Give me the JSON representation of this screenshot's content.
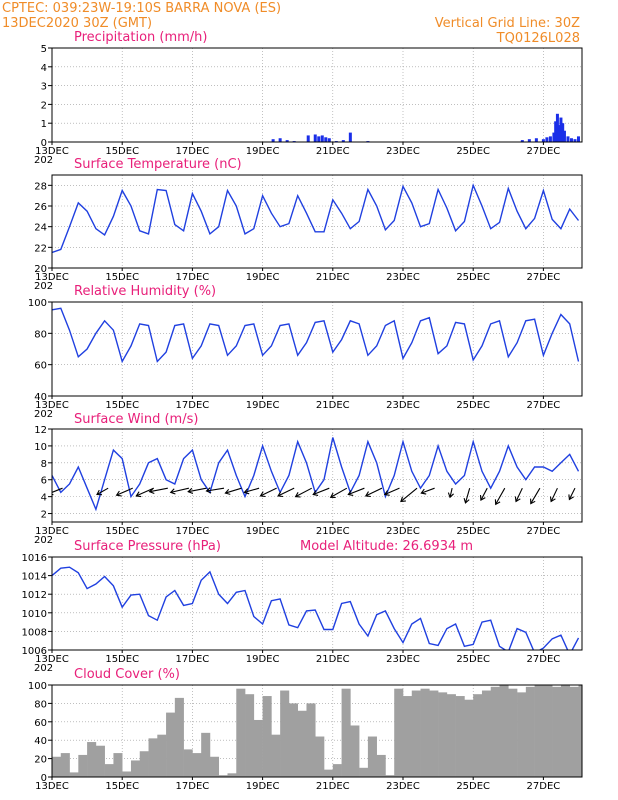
{
  "header": {
    "line1_left": "CPTEC:   039:23W-19:10S   BARRA NOVA (ES)",
    "line2_left": "13DEC2020 30Z (GMT)",
    "line1_right": "Vertical Grid Line: 30Z",
    "line2_right": "TQ0126L028",
    "year_stub": "202"
  },
  "colors": {
    "header": "#f08c28",
    "title": "#e8207a",
    "line": "#2040e0",
    "bar": "#1a2ee8",
    "cloud": "#a0a0a0",
    "arrow": "#000000"
  },
  "x_axis": {
    "day_start": 13,
    "day_end": 28.1,
    "tick_days": [
      13,
      15,
      17,
      19,
      21,
      23,
      25,
      27
    ],
    "tick_labels": [
      "13DEC",
      "15DEC",
      "17DEC",
      "19DEC",
      "21DEC",
      "23DEC",
      "25DEC",
      "27DEC"
    ]
  },
  "chart_data": [
    {
      "type": "bar",
      "title": "Precipitation (mm/h)",
      "ylim": [
        0,
        5
      ],
      "yticks": [
        0,
        1,
        2,
        3,
        4,
        5
      ],
      "x": [
        13.2,
        13.6,
        14.0,
        14.4,
        14.8,
        15.2,
        15.6,
        16.0,
        16.4,
        16.8,
        17.2,
        17.6,
        18.0,
        18.4,
        18.8,
        19.3,
        19.5,
        19.7,
        19.9,
        20.3,
        20.5,
        20.6,
        20.7,
        20.8,
        20.9,
        21.1,
        21.3,
        21.5,
        22.0,
        22.3,
        22.6,
        23.0,
        23.5,
        24.0,
        24.5,
        25.0,
        25.5,
        26.0,
        26.4,
        26.6,
        26.8,
        27.0,
        27.1,
        27.2,
        27.3,
        27.35,
        27.4,
        27.45,
        27.5,
        27.55,
        27.6,
        27.7,
        27.8,
        27.9,
        28.0
      ],
      "values": [
        0.02,
        0.02,
        0.02,
        0.02,
        0.02,
        0.02,
        0.02,
        0.02,
        0.02,
        0.02,
        0.02,
        0.02,
        0.02,
        0.02,
        0.02,
        0.15,
        0.2,
        0.1,
        0.05,
        0.35,
        0.4,
        0.3,
        0.35,
        0.25,
        0.2,
        0.05,
        0.1,
        0.5,
        0.05,
        0.02,
        0.02,
        0.02,
        0.02,
        0.02,
        0.02,
        0.02,
        0.02,
        0.02,
        0.1,
        0.15,
        0.2,
        0.15,
        0.25,
        0.3,
        0.5,
        1.1,
        1.5,
        0.9,
        1.3,
        1.0,
        0.6,
        0.3,
        0.2,
        0.15,
        0.3
      ]
    },
    {
      "type": "line",
      "title": "Surface Temperature (nC)",
      "ylim": [
        20,
        29
      ],
      "yticks": [
        20,
        22,
        24,
        26,
        28
      ],
      "x": [
        13.0,
        13.25,
        13.5,
        13.75,
        14.0,
        14.25,
        14.5,
        14.75,
        15.0,
        15.25,
        15.5,
        15.75,
        16.0,
        16.25,
        16.5,
        16.75,
        17.0,
        17.25,
        17.5,
        17.75,
        18.0,
        18.25,
        18.5,
        18.75,
        19.0,
        19.25,
        19.5,
        19.75,
        20.0,
        20.25,
        20.5,
        20.75,
        21.0,
        21.25,
        21.5,
        21.75,
        22.0,
        22.25,
        22.5,
        22.75,
        23.0,
        23.25,
        23.5,
        23.75,
        24.0,
        24.25,
        24.5,
        24.75,
        25.0,
        25.25,
        25.5,
        25.75,
        26.0,
        26.25,
        26.5,
        26.75,
        27.0,
        27.25,
        27.5,
        27.75,
        28.0
      ],
      "values": [
        21.5,
        21.8,
        24.0,
        26.3,
        25.5,
        23.8,
        23.2,
        25.0,
        27.5,
        26.0,
        23.6,
        23.3,
        27.6,
        27.5,
        24.2,
        23.6,
        27.2,
        25.5,
        23.3,
        24.0,
        27.5,
        26.0,
        23.3,
        23.8,
        27.0,
        25.3,
        24.0,
        24.3,
        27.0,
        25.3,
        23.5,
        23.5,
        26.6,
        25.3,
        23.8,
        24.5,
        27.6,
        26.0,
        23.7,
        24.6,
        27.9,
        26.3,
        24.0,
        24.3,
        27.6,
        25.8,
        23.6,
        24.5,
        28.0,
        26.0,
        23.8,
        24.4,
        27.7,
        25.5,
        23.8,
        24.8,
        27.5,
        24.7,
        23.8,
        25.7,
        24.6
      ]
    },
    {
      "type": "line",
      "title": "Relative Humidity (%)",
      "ylim": [
        40,
        100
      ],
      "yticks": [
        40,
        60,
        80,
        100
      ],
      "x": [
        13.0,
        13.25,
        13.5,
        13.75,
        14.0,
        14.25,
        14.5,
        14.75,
        15.0,
        15.25,
        15.5,
        15.75,
        16.0,
        16.25,
        16.5,
        16.75,
        17.0,
        17.25,
        17.5,
        17.75,
        18.0,
        18.25,
        18.5,
        18.75,
        19.0,
        19.25,
        19.5,
        19.75,
        20.0,
        20.25,
        20.5,
        20.75,
        21.0,
        21.25,
        21.5,
        21.75,
        22.0,
        22.25,
        22.5,
        22.75,
        23.0,
        23.25,
        23.5,
        23.75,
        24.0,
        24.25,
        24.5,
        24.75,
        25.0,
        25.25,
        25.5,
        25.75,
        26.0,
        26.25,
        26.5,
        26.75,
        27.0,
        27.25,
        27.5,
        27.75,
        28.0
      ],
      "values": [
        95,
        96,
        82,
        65,
        70,
        80,
        88,
        82,
        62,
        72,
        86,
        85,
        62,
        68,
        85,
        86,
        64,
        72,
        86,
        85,
        66,
        72,
        85,
        86,
        66,
        72,
        85,
        86,
        66,
        74,
        87,
        88,
        68,
        76,
        88,
        86,
        66,
        72,
        85,
        88,
        64,
        74,
        88,
        90,
        67,
        72,
        87,
        86,
        63,
        72,
        86,
        88,
        65,
        74,
        88,
        89,
        66,
        80,
        92,
        86,
        62
      ]
    },
    {
      "type": "line",
      "title": "Surface Wind (m/s)",
      "ylim": [
        1,
        12
      ],
      "yticks": [
        2,
        4,
        6,
        8,
        10,
        12
      ],
      "x": [
        13.0,
        13.25,
        13.5,
        13.75,
        14.0,
        14.25,
        14.5,
        14.75,
        15.0,
        15.25,
        15.5,
        15.75,
        16.0,
        16.25,
        16.5,
        16.75,
        17.0,
        17.25,
        17.5,
        17.75,
        18.0,
        18.25,
        18.5,
        18.75,
        19.0,
        19.25,
        19.5,
        19.75,
        20.0,
        20.25,
        20.5,
        20.75,
        21.0,
        21.25,
        21.5,
        21.75,
        22.0,
        22.25,
        22.5,
        22.75,
        23.0,
        23.25,
        23.5,
        23.75,
        24.0,
        24.25,
        24.5,
        24.75,
        25.0,
        25.25,
        25.5,
        25.75,
        26.0,
        26.25,
        26.5,
        26.75,
        27.0,
        27.25,
        27.5,
        27.75,
        28.0
      ],
      "values": [
        6.5,
        4.5,
        5.5,
        7.5,
        5.0,
        2.5,
        6.0,
        9.5,
        8.5,
        4.0,
        5.5,
        8.0,
        8.5,
        6.0,
        5.5,
        8.5,
        9.5,
        6.0,
        4.5,
        8.0,
        9.5,
        6.5,
        4.0,
        6.5,
        10.0,
        7.0,
        4.5,
        6.5,
        10.5,
        8.0,
        4.5,
        6.0,
        11.0,
        7.5,
        4.5,
        6.5,
        10.5,
        8.0,
        4.0,
        6.5,
        10.5,
        7.0,
        5.0,
        6.5,
        10.0,
        7.0,
        5.5,
        6.5,
        10.5,
        7.0,
        5.0,
        7.0,
        10.0,
        7.5,
        6.0,
        7.5,
        7.5,
        7.0,
        8.0,
        9.0,
        7.0
      ],
      "vectors": {
        "x": [
          13.3,
          14.6,
          15.3,
          15.9,
          16.3,
          16.9,
          17.4,
          17.9,
          18.4,
          18.9,
          19.4,
          19.9,
          20.4,
          20.9,
          21.4,
          21.9,
          22.4,
          22.9,
          23.4,
          23.9,
          24.4,
          24.9,
          25.4,
          25.9,
          26.4,
          26.9,
          27.4,
          27.9
        ],
        "u": [
          -2.0,
          -1.6,
          -2.3,
          -2.5,
          -2.6,
          -2.6,
          -2.6,
          -2.5,
          -2.3,
          -2.1,
          -2.3,
          -2.3,
          -2.3,
          -2.3,
          -2.3,
          -2.3,
          -2.3,
          -2.1,
          -2.3,
          -1.9,
          -0.3,
          -0.6,
          -0.9,
          -1.3,
          -0.9,
          -1.3,
          -0.9,
          -0.8
        ],
        "v": [
          -0.8,
          -0.9,
          -1.0,
          -1.1,
          -0.5,
          -0.6,
          -0.5,
          -0.4,
          -0.7,
          -0.6,
          -1.1,
          -1.1,
          -1.2,
          -0.9,
          -1.3,
          -0.9,
          -1.1,
          -0.9,
          -1.9,
          -0.7,
          -1.3,
          -2.1,
          -1.7,
          -2.3,
          -1.9,
          -2.2,
          -1.9,
          -1.6
        ]
      }
    },
    {
      "type": "line",
      "title": "Surface Pressure (hPa)",
      "annotation": "Model Altitude: 26.6934 m",
      "ylim": [
        1006,
        1016
      ],
      "yticks": [
        1006,
        1008,
        1010,
        1012,
        1014,
        1016
      ],
      "x": [
        13.0,
        13.25,
        13.5,
        13.75,
        14.0,
        14.25,
        14.5,
        14.75,
        15.0,
        15.25,
        15.5,
        15.75,
        16.0,
        16.25,
        16.5,
        16.75,
        17.0,
        17.25,
        17.5,
        17.75,
        18.0,
        18.25,
        18.5,
        18.75,
        19.0,
        19.25,
        19.5,
        19.75,
        20.0,
        20.25,
        20.5,
        20.75,
        21.0,
        21.25,
        21.5,
        21.75,
        22.0,
        22.25,
        22.5,
        22.75,
        23.0,
        23.25,
        23.5,
        23.75,
        24.0,
        24.25,
        24.5,
        24.75,
        25.0,
        25.25,
        25.5,
        25.75,
        26.0,
        26.25,
        26.5,
        26.75,
        27.0,
        27.25,
        27.5,
        27.75,
        28.0
      ],
      "values": [
        1014.0,
        1014.8,
        1014.9,
        1014.3,
        1012.6,
        1013.1,
        1013.9,
        1012.9,
        1010.6,
        1011.9,
        1012.0,
        1009.7,
        1009.2,
        1011.7,
        1012.4,
        1010.8,
        1011.0,
        1013.5,
        1014.4,
        1012.0,
        1011.0,
        1012.2,
        1012.4,
        1009.6,
        1008.8,
        1011.3,
        1011.5,
        1008.7,
        1008.4,
        1010.2,
        1010.3,
        1008.2,
        1008.2,
        1011.0,
        1011.2,
        1008.8,
        1007.5,
        1009.8,
        1010.2,
        1008.3,
        1006.8,
        1008.8,
        1009.4,
        1006.7,
        1006.5,
        1008.3,
        1008.8,
        1006.4,
        1006.6,
        1009.0,
        1009.2,
        1006.4,
        1005.8,
        1008.3,
        1007.9,
        1005.7,
        1006.2,
        1007.2,
        1007.6,
        1005.5,
        1007.3
      ]
    },
    {
      "type": "area",
      "title": "Cloud Cover (%)",
      "ylim": [
        0,
        100
      ],
      "yticks": [
        0,
        20,
        40,
        60,
        80,
        100
      ],
      "x": [
        13.0,
        13.25,
        13.5,
        13.75,
        14.0,
        14.25,
        14.5,
        14.75,
        15.0,
        15.25,
        15.5,
        15.75,
        16.0,
        16.25,
        16.5,
        16.75,
        17.0,
        17.25,
        17.5,
        17.75,
        18.0,
        18.25,
        18.5,
        18.75,
        19.0,
        19.25,
        19.5,
        19.75,
        20.0,
        20.25,
        20.5,
        20.75,
        21.0,
        21.25,
        21.5,
        21.75,
        22.0,
        22.25,
        22.5,
        22.75,
        23.0,
        23.25,
        23.5,
        23.75,
        24.0,
        24.25,
        24.5,
        24.75,
        25.0,
        25.25,
        25.5,
        25.75,
        26.0,
        26.25,
        26.5,
        26.75,
        27.0,
        27.25,
        27.5,
        27.75,
        28.0
      ],
      "values": [
        22,
        26,
        5,
        24,
        38,
        34,
        14,
        26,
        6,
        18,
        28,
        42,
        46,
        70,
        86,
        30,
        26,
        48,
        22,
        2,
        4,
        96,
        90,
        62,
        88,
        46,
        94,
        80,
        72,
        80,
        44,
        8,
        14,
        96,
        56,
        10,
        44,
        24,
        2,
        96,
        88,
        94,
        96,
        94,
        92,
        90,
        88,
        84,
        90,
        94,
        98,
        100,
        96,
        92,
        98,
        100,
        100,
        98,
        100,
        98,
        100
      ]
    }
  ]
}
